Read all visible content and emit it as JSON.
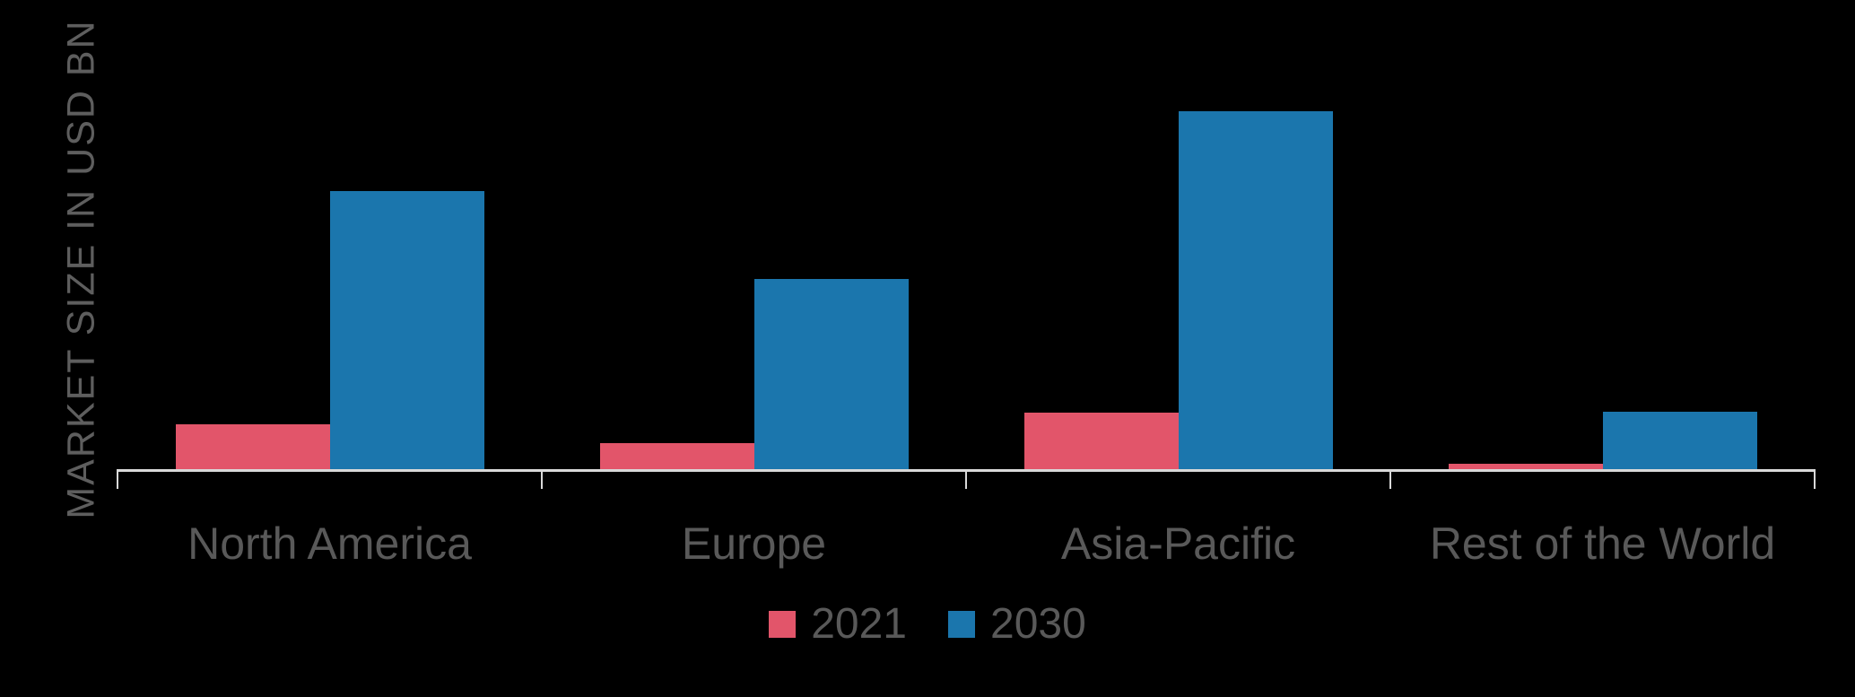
{
  "chart_data": {
    "type": "bar",
    "title": "",
    "xlabel": "",
    "ylabel": "MARKET SIZE IN USD BN",
    "categories": [
      "North America",
      "Europe",
      "Asia-Pacific",
      "Rest of the World"
    ],
    "series": [
      {
        "name": "2021",
        "color": "#e2556a",
        "values": [
          12.8,
          7.5,
          16.0,
          1.8
        ]
      },
      {
        "name": "2030",
        "color": "#1b76ad",
        "values": [
          77.8,
          53.3,
          100.0,
          16.3
        ]
      }
    ],
    "ylim": [
      0,
      100
    ],
    "y_tick_labels_visible": false,
    "gridlines": false,
    "legend_position": "bottom",
    "value_note": "Y axis has no numeric tick labels; values are relative estimates normalized so the tallest bar (Asia-Pacific 2030) = 100",
    "colors": {
      "background": "#000000",
      "axis_line": "#d9d9d9",
      "text": "#595959",
      "series_2021": "#e2556a",
      "series_2030": "#1b76ad"
    }
  }
}
